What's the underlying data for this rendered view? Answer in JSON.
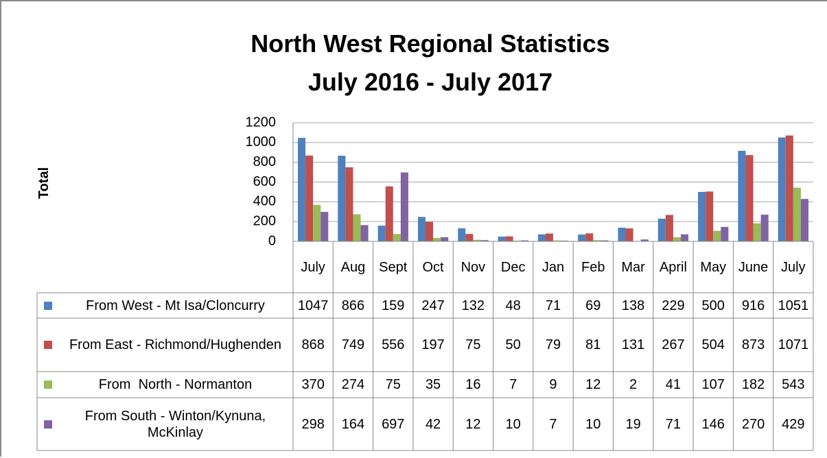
{
  "chart_data": {
    "type": "bar",
    "title": "North West Regional Statistics",
    "subtitle": "July 2016 - July 2017",
    "y_label": "Total",
    "categories": [
      "July",
      "Aug",
      "Sept",
      "Oct",
      "Nov",
      "Dec",
      "Jan",
      "Feb",
      "Mar",
      "April",
      "May",
      "June",
      "July"
    ],
    "series": [
      {
        "name": "From West - Mt Isa/Cloncurry",
        "color": "#4f81bd",
        "values": [
          1047,
          866,
          159,
          247,
          132,
          48,
          71,
          69,
          138,
          229,
          500,
          916,
          1051
        ]
      },
      {
        "name": "From East - Richmond/Hughenden",
        "color": "#c0504d",
        "values": [
          868,
          749,
          556,
          197,
          75,
          50,
          79,
          81,
          131,
          267,
          504,
          873,
          1071
        ]
      },
      {
        "name": "From  North - Normanton",
        "color": "#9bbb59",
        "values": [
          370,
          274,
          75,
          35,
          16,
          7,
          9,
          12,
          2,
          41,
          107,
          182,
          543
        ]
      },
      {
        "name": "From South - Winton/Kynuna, McKinlay",
        "color": "#8064a2",
        "values": [
          298,
          164,
          697,
          42,
          12,
          10,
          7,
          10,
          19,
          71,
          146,
          270,
          429
        ]
      }
    ],
    "ylim": [
      0,
      1200
    ],
    "yticks": [
      0,
      200,
      400,
      600,
      800,
      1000,
      1200
    ],
    "grid": true,
    "data_table": true
  }
}
